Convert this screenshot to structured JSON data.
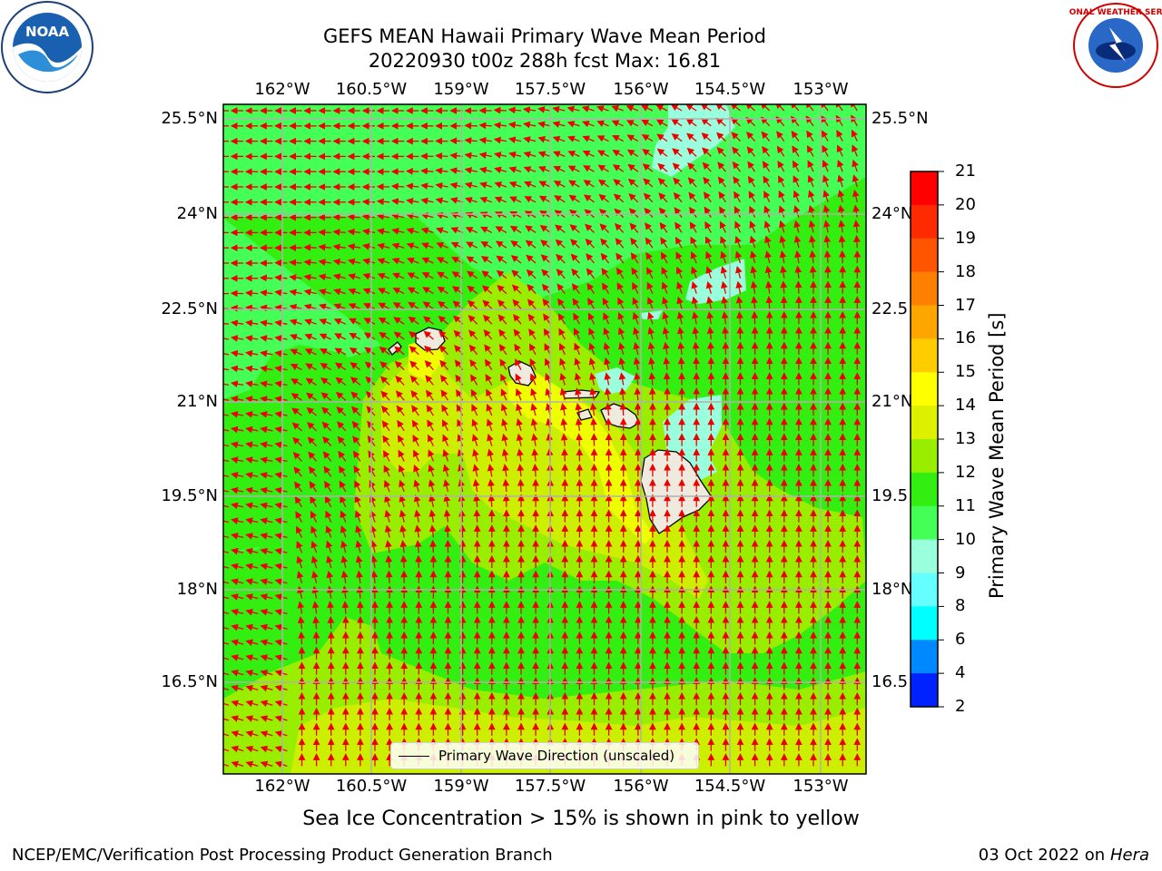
{
  "title": {
    "line1": "GEFS MEAN Hawaii Primary Wave Mean Period",
    "line2": "20220930 t00z 288h fcst   Max: 16.81"
  },
  "axes": {
    "lon_labels": [
      "162°W",
      "160.5°W",
      "159°W",
      "157.5°W",
      "156°W",
      "154.5°W",
      "153°W"
    ],
    "lat_labels_left": [
      "25.5°N",
      "24°N",
      "22.5°N",
      "21°N",
      "19.5°N",
      "18°N",
      "16.5°N"
    ],
    "lat_labels_right": [
      "25.5°N",
      "24°N",
      "22.5",
      "21°N",
      "19.5",
      "18°N",
      "16.5"
    ]
  },
  "colorbar": {
    "label": "Primary Wave Mean Period [s]",
    "ticks": [
      "21",
      "20",
      "19",
      "18",
      "17",
      "16",
      "15",
      "14",
      "13",
      "12",
      "11",
      "10",
      "9",
      "8",
      "6",
      "4",
      "2"
    ],
    "colors": [
      "#ff0000",
      "#ff2a00",
      "#ff5500",
      "#ff7f00",
      "#ffa500",
      "#ffcc00",
      "#ffff00",
      "#ddf000",
      "#99ee00",
      "#33ee11",
      "#44ff55",
      "#99ffdd",
      "#66ffff",
      "#00ffff",
      "#0088ff",
      "#0022ff"
    ]
  },
  "legend": {
    "label": "Primary Wave Direction (unscaled)"
  },
  "note": "Sea Ice Concentration > 15% is shown in pink to yellow",
  "footer": {
    "left": "NCEP/EMC/Verification Post Processing Product Generation Branch",
    "right_date": "03 Oct 2022 on ",
    "right_host": "Hera"
  },
  "logos": {
    "noaa_text": "NOAA",
    "nws_text": "NATIONAL WEATHER SERVICE"
  },
  "chart_data": {
    "type": "heatmap",
    "title": "GEFS MEAN Hawaii Primary Wave Mean Period",
    "subtitle": "20220930 t00z 288h fcst   Max: 16.81",
    "max_value": 16.81,
    "units": "s",
    "lon_range": [
      -163,
      -152
    ],
    "lat_range": [
      15.5,
      25.7
    ],
    "colorbar_levels": [
      2,
      4,
      6,
      8,
      9,
      10,
      11,
      12,
      13,
      14,
      15,
      16,
      17,
      18,
      19,
      20,
      21
    ],
    "vector_field": "Primary Wave Direction (unscaled)",
    "dominant_direction": "westward in north, northward in south"
  }
}
